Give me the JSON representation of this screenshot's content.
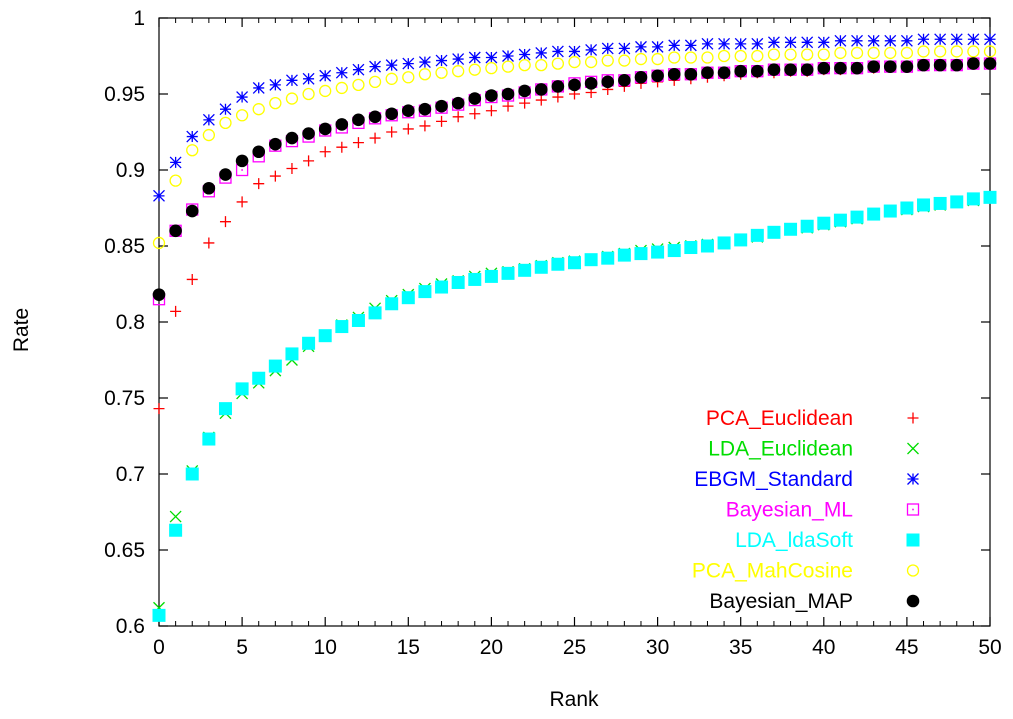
{
  "chart_data": {
    "type": "scatter",
    "xlabel": "Rank",
    "ylabel": "Rate",
    "xlim": [
      0,
      50
    ],
    "ylim": [
      0.6,
      1.0
    ],
    "x_ticks": [
      "0",
      "5",
      "10",
      "15",
      "20",
      "25",
      "30",
      "35",
      "40",
      "45",
      "50"
    ],
    "y_ticks": [
      "0.6",
      "0.65",
      "0.7",
      "0.75",
      "0.8",
      "0.85",
      "0.9",
      "0.95",
      "1"
    ],
    "grid": false,
    "legend_position": "bottom-right",
    "x": [
      0,
      1,
      2,
      3,
      4,
      5,
      6,
      7,
      8,
      9,
      10,
      11,
      12,
      13,
      14,
      15,
      16,
      17,
      18,
      19,
      20,
      21,
      22,
      23,
      24,
      25,
      26,
      27,
      28,
      29,
      30,
      31,
      32,
      33,
      34,
      35,
      36,
      37,
      38,
      39,
      40,
      41,
      42,
      43,
      44,
      45,
      46,
      47,
      48,
      49,
      50
    ],
    "series": [
      {
        "name": "PCA_Euclidean",
        "color": "#ff0000",
        "marker": "plus",
        "values": [
          0.743,
          0.807,
          0.828,
          0.852,
          0.866,
          0.879,
          0.891,
          0.896,
          0.901,
          0.906,
          0.912,
          0.915,
          0.918,
          0.921,
          0.925,
          0.927,
          0.929,
          0.932,
          0.935,
          0.937,
          0.939,
          0.942,
          0.944,
          0.946,
          0.948,
          0.95,
          0.951,
          0.953,
          0.955,
          0.957,
          0.958,
          0.959,
          0.96,
          0.961,
          0.962,
          0.963,
          0.964,
          0.964,
          0.965,
          0.965,
          0.966,
          0.966,
          0.967,
          0.967,
          0.968,
          0.968,
          0.969,
          0.969,
          0.969,
          0.97,
          0.97
        ]
      },
      {
        "name": "LDA_Euclidean",
        "color": "#00dd00",
        "marker": "cross",
        "values": [
          0.612,
          0.672,
          0.702,
          0.724,
          0.74,
          0.753,
          0.76,
          0.768,
          0.775,
          0.784,
          0.791,
          0.798,
          0.803,
          0.809,
          0.814,
          0.818,
          0.822,
          0.825,
          0.827,
          0.83,
          0.832,
          0.833,
          0.835,
          0.837,
          0.839,
          0.84,
          0.841,
          0.843,
          0.845,
          0.847,
          0.848,
          0.849,
          0.85,
          0.851,
          0.852,
          0.854,
          0.856,
          0.859,
          0.861,
          0.862,
          0.864,
          0.866,
          0.868,
          0.871,
          0.873,
          0.874,
          0.876,
          0.877,
          0.879,
          0.88,
          0.882
        ]
      },
      {
        "name": "EBGM_Standard",
        "color": "#0000ff",
        "marker": "star",
        "values": [
          0.883,
          0.905,
          0.922,
          0.933,
          0.94,
          0.948,
          0.954,
          0.956,
          0.959,
          0.96,
          0.962,
          0.964,
          0.966,
          0.968,
          0.969,
          0.97,
          0.971,
          0.972,
          0.973,
          0.974,
          0.974,
          0.975,
          0.976,
          0.977,
          0.978,
          0.978,
          0.979,
          0.98,
          0.98,
          0.981,
          0.981,
          0.982,
          0.982,
          0.983,
          0.983,
          0.983,
          0.983,
          0.984,
          0.984,
          0.984,
          0.984,
          0.985,
          0.985,
          0.985,
          0.985,
          0.985,
          0.986,
          0.986,
          0.986,
          0.986,
          0.986
        ]
      },
      {
        "name": "Bayesian_ML",
        "color": "#ff00ff",
        "marker": "square-open",
        "values": [
          0.815,
          0.86,
          0.874,
          0.886,
          0.895,
          0.9,
          0.909,
          0.916,
          0.919,
          0.922,
          0.926,
          0.928,
          0.931,
          0.934,
          0.936,
          0.938,
          0.939,
          0.941,
          0.943,
          0.946,
          0.948,
          0.949,
          0.951,
          0.953,
          0.955,
          0.957,
          0.958,
          0.959,
          0.959,
          0.961,
          0.962,
          0.963,
          0.963,
          0.964,
          0.964,
          0.965,
          0.965,
          0.966,
          0.966,
          0.966,
          0.967,
          0.967,
          0.967,
          0.968,
          0.968,
          0.968,
          0.969,
          0.969,
          0.969,
          0.97,
          0.97
        ]
      },
      {
        "name": "LDA_ldaSoft",
        "color": "#00ffff",
        "marker": "square-filled",
        "values": [
          0.607,
          0.663,
          0.7,
          0.723,
          0.743,
          0.756,
          0.763,
          0.771,
          0.779,
          0.786,
          0.791,
          0.797,
          0.801,
          0.806,
          0.812,
          0.816,
          0.82,
          0.823,
          0.826,
          0.828,
          0.83,
          0.832,
          0.834,
          0.836,
          0.838,
          0.839,
          0.841,
          0.842,
          0.844,
          0.845,
          0.846,
          0.847,
          0.849,
          0.85,
          0.852,
          0.854,
          0.857,
          0.859,
          0.861,
          0.863,
          0.865,
          0.867,
          0.869,
          0.871,
          0.873,
          0.875,
          0.877,
          0.878,
          0.879,
          0.881,
          0.882
        ]
      },
      {
        "name": "PCA_MahCosine",
        "color": "#ffff00",
        "marker": "circle-open",
        "values": [
          0.852,
          0.893,
          0.913,
          0.923,
          0.931,
          0.936,
          0.94,
          0.944,
          0.947,
          0.95,
          0.952,
          0.954,
          0.956,
          0.958,
          0.96,
          0.961,
          0.963,
          0.964,
          0.965,
          0.966,
          0.967,
          0.968,
          0.969,
          0.969,
          0.97,
          0.971,
          0.971,
          0.972,
          0.972,
          0.973,
          0.973,
          0.974,
          0.974,
          0.974,
          0.975,
          0.975,
          0.975,
          0.976,
          0.976,
          0.976,
          0.976,
          0.977,
          0.977,
          0.977,
          0.977,
          0.977,
          0.978,
          0.978,
          0.978,
          0.978,
          0.978
        ]
      },
      {
        "name": "Bayesian_MAP",
        "color": "#000000",
        "marker": "circle-filled",
        "values": [
          0.818,
          0.86,
          0.873,
          0.888,
          0.897,
          0.906,
          0.912,
          0.917,
          0.921,
          0.924,
          0.927,
          0.93,
          0.933,
          0.935,
          0.937,
          0.939,
          0.94,
          0.942,
          0.944,
          0.947,
          0.949,
          0.95,
          0.952,
          0.953,
          0.955,
          0.956,
          0.957,
          0.958,
          0.959,
          0.961,
          0.962,
          0.963,
          0.963,
          0.964,
          0.964,
          0.965,
          0.965,
          0.966,
          0.966,
          0.966,
          0.967,
          0.967,
          0.967,
          0.968,
          0.968,
          0.968,
          0.969,
          0.969,
          0.969,
          0.97,
          0.97
        ]
      }
    ]
  }
}
